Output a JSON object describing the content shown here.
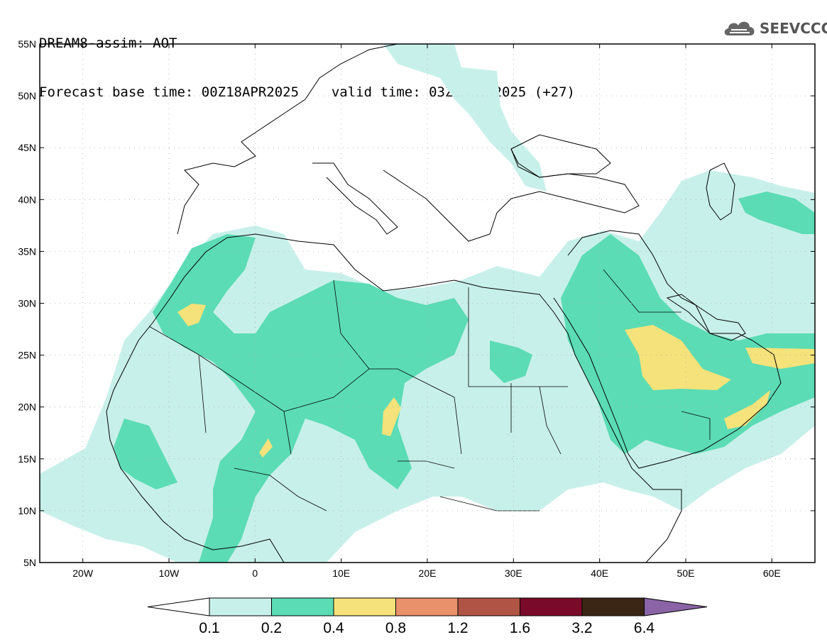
{
  "header": {
    "line1": "DREAM8-assim: AOT",
    "base_label": "Forecast base time: 00Z18APR2025",
    "valid_label": "valid time: 03Z19APR2025 (+27)"
  },
  "logo": {
    "text": "SEEVCCC",
    "icon": "cloud-icon"
  },
  "map": {
    "lat_labels": [
      "55N",
      "50N",
      "45N",
      "40N",
      "35N",
      "30N",
      "25N",
      "20N",
      "15N",
      "10N",
      "5N"
    ],
    "lon_labels": [
      "20W",
      "10W",
      "0",
      "10E",
      "20E",
      "30E",
      "40E",
      "50E",
      "60E"
    ]
  },
  "legend": {
    "values": [
      "0.1",
      "0.2",
      "0.4",
      "0.8",
      "1.2",
      "1.6",
      "3.2",
      "6.4"
    ],
    "colors": [
      "#c8f0ea",
      "#5bdcb4",
      "#f5e27a",
      "#e8916a",
      "#b05545",
      "#7a0a2a",
      "#3b2616",
      "#8a64a6"
    ]
  },
  "colors": {
    "aot_0_1": "#c8f0ea",
    "aot_0_2": "#5bdcb4",
    "aot_0_4": "#f5e27a",
    "coastline": "#000000"
  }
}
